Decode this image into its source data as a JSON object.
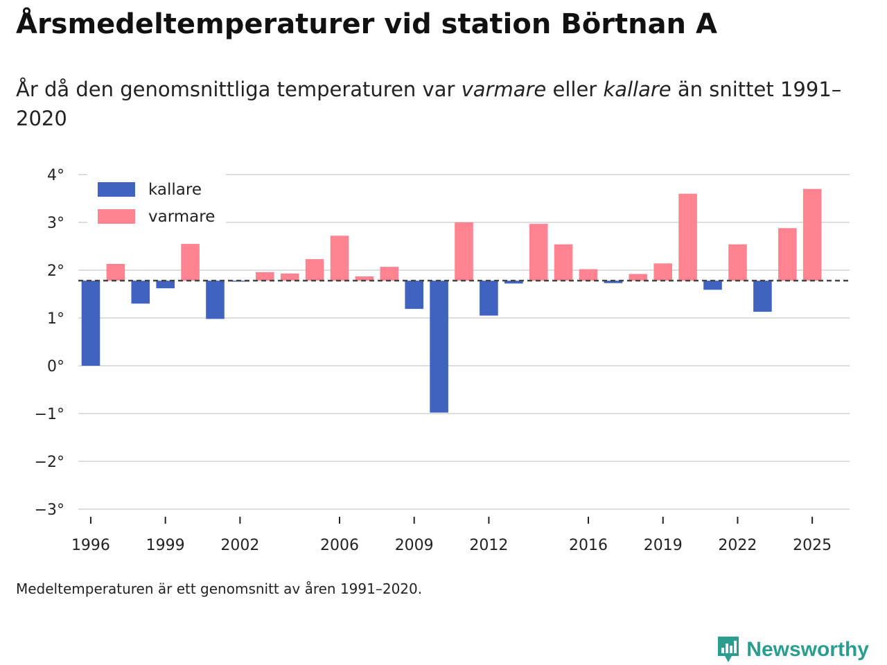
{
  "header": {
    "title": "Årsmedeltemperaturer vid station Börtnan A",
    "subtitle_pre": "År då den genomsnittliga temperaturen var ",
    "subtitle_warm": "varmare",
    "subtitle_mid": " eller ",
    "subtitle_cold": "kallare",
    "subtitle_post": " än snittet 1991–2020"
  },
  "footnote": "Medeltemperaturen är ett genomsnitt av åren 1991–2020.",
  "brand": {
    "name": "Newsworthy",
    "icon": "newsworthy-logo-icon",
    "color": "#2a9d8f"
  },
  "colors": {
    "colder": "#4063bf",
    "warmer": "#ff8391",
    "grid": "#dddddd",
    "baseline": "#444444"
  },
  "chart_data": {
    "type": "bar",
    "title": "Årsmedeltemperaturer vid station Börtnan A",
    "baseline": 1.78,
    "baseline_label": "snittet 1991–2020",
    "ylim": [
      -3,
      4
    ],
    "yticks": [
      4,
      3,
      2,
      1,
      0,
      -1,
      -2,
      -3
    ],
    "ytick_labels": [
      "4°",
      "3°",
      "2°",
      "1°",
      "0°",
      "−1°",
      "−2°",
      "−3°"
    ],
    "xlim": [
      1995.5,
      2026.5
    ],
    "xticks": [
      1996,
      1999,
      2002,
      2006,
      2009,
      2012,
      2016,
      2019,
      2022,
      2025
    ],
    "xtick_labels": [
      "1996",
      "1999",
      "2002",
      "2006",
      "2009",
      "2012",
      "2016",
      "2019",
      "2022",
      "2025"
    ],
    "legend": [
      {
        "key": "colder",
        "label": "kallare"
      },
      {
        "key": "warmer",
        "label": "varmare"
      }
    ],
    "legend_position": "top-left",
    "years": [
      1996,
      1997,
      1998,
      1999,
      2000,
      2001,
      2002,
      2003,
      2004,
      2005,
      2006,
      2007,
      2008,
      2009,
      2010,
      2011,
      2012,
      2013,
      2014,
      2015,
      2016,
      2017,
      2018,
      2019,
      2020,
      2021,
      2022,
      2023,
      2024,
      2025
    ],
    "values": [
      0.0,
      2.13,
      1.3,
      1.62,
      2.55,
      0.98,
      1.76,
      1.96,
      1.93,
      2.23,
      2.72,
      1.87,
      2.07,
      1.19,
      -0.98,
      3.0,
      1.05,
      1.72,
      2.97,
      2.54,
      2.02,
      1.73,
      1.92,
      2.14,
      3.6,
      1.59,
      2.54,
      1.13,
      2.88,
      3.7
    ]
  }
}
